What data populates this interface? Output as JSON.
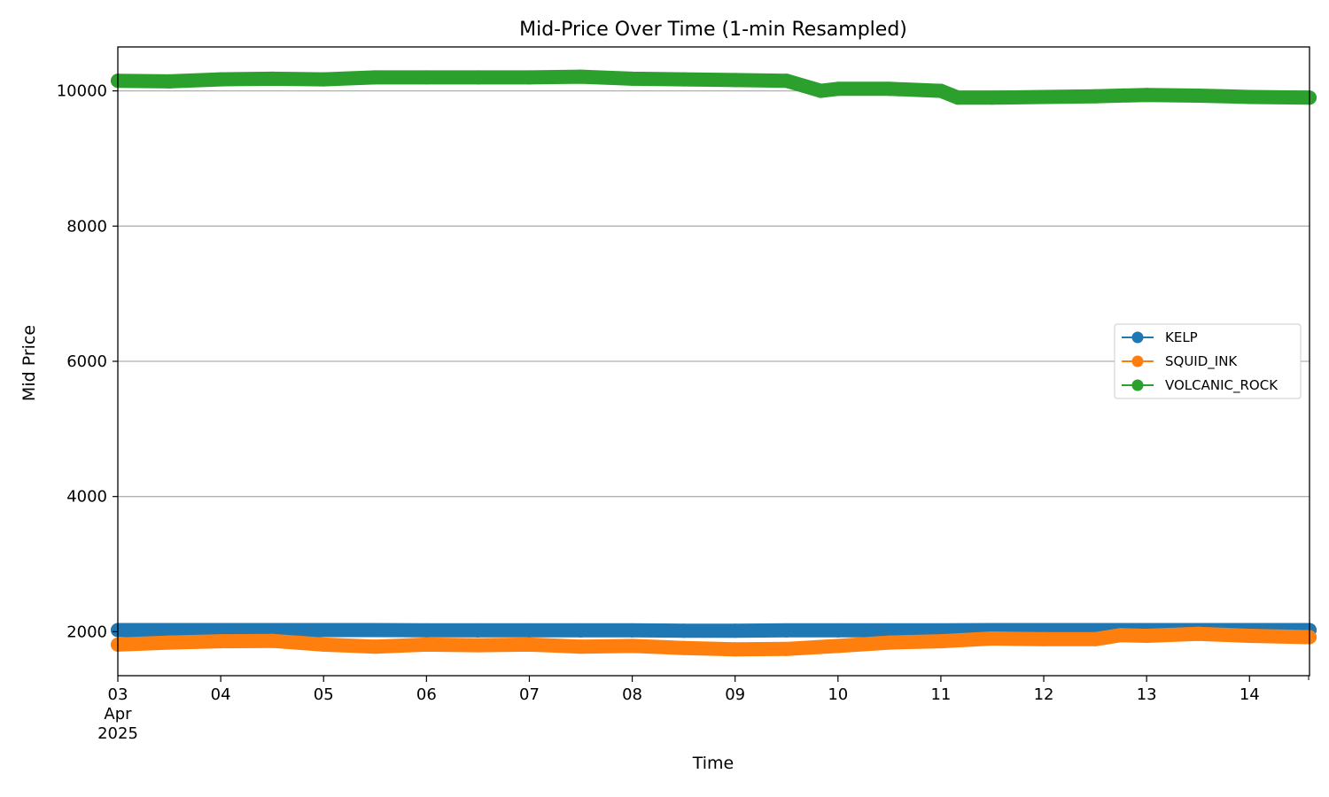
{
  "chart_data": {
    "type": "line",
    "title": "Mid-Price Over Time (1-min Resampled)",
    "xlabel": "Time",
    "ylabel": "Mid Price",
    "xlim": [
      "2025-04-03",
      "2025-04-14 14:00"
    ],
    "ylim": [
      1350,
      10650
    ],
    "grid": "y",
    "legend_position": "center-right",
    "x_ticks": [
      {
        "date": "2025-04-03",
        "label": [
          "03",
          "Apr",
          "2025"
        ]
      },
      {
        "date": "2025-04-04",
        "label": [
          "04"
        ]
      },
      {
        "date": "2025-04-05",
        "label": [
          "05"
        ]
      },
      {
        "date": "2025-04-06",
        "label": [
          "06"
        ]
      },
      {
        "date": "2025-04-07",
        "label": [
          "07"
        ]
      },
      {
        "date": "2025-04-08",
        "label": [
          "08"
        ]
      },
      {
        "date": "2025-04-09",
        "label": [
          "09"
        ]
      },
      {
        "date": "2025-04-10",
        "label": [
          "10"
        ]
      },
      {
        "date": "2025-04-11",
        "label": [
          "11"
        ]
      },
      {
        "date": "2025-04-12",
        "label": [
          "12"
        ]
      },
      {
        "date": "2025-04-13",
        "label": [
          "13"
        ]
      },
      {
        "date": "2025-04-14",
        "label": [
          "14"
        ]
      }
    ],
    "y_ticks": [
      {
        "value": 2000,
        "label": "2000"
      },
      {
        "value": 4000,
        "label": "4000"
      },
      {
        "value": 6000,
        "label": "6000"
      },
      {
        "value": 8000,
        "label": "8000"
      },
      {
        "value": 10000,
        "label": "10000"
      }
    ],
    "series": [
      {
        "name": "KELP",
        "color": "#1f77b4",
        "points": [
          [
            "2025-04-03 00:00",
            2025
          ],
          [
            "2025-04-03 12:00",
            2025
          ],
          [
            "2025-04-04 00:00",
            2025
          ],
          [
            "2025-04-04 12:00",
            2025
          ],
          [
            "2025-04-05 00:00",
            2025
          ],
          [
            "2025-04-05 12:00",
            2025
          ],
          [
            "2025-04-06 00:00",
            2020
          ],
          [
            "2025-04-06 12:00",
            2020
          ],
          [
            "2025-04-07 00:00",
            2020
          ],
          [
            "2025-04-07 12:00",
            2020
          ],
          [
            "2025-04-08 00:00",
            2020
          ],
          [
            "2025-04-08 12:00",
            2015
          ],
          [
            "2025-04-09 00:00",
            2015
          ],
          [
            "2025-04-09 12:00",
            2020
          ],
          [
            "2025-04-10 00:00",
            2020
          ],
          [
            "2025-04-10 12:00",
            2020
          ],
          [
            "2025-04-11 00:00",
            2020
          ],
          [
            "2025-04-11 12:00",
            2025
          ],
          [
            "2025-04-12 00:00",
            2025
          ],
          [
            "2025-04-12 12:00",
            2025
          ],
          [
            "2025-04-13 00:00",
            2025
          ],
          [
            "2025-04-13 12:00",
            2025
          ],
          [
            "2025-04-14 00:00",
            2025
          ],
          [
            "2025-04-14 14:00",
            2025
          ]
        ]
      },
      {
        "name": "SQUID_INK",
        "color": "#ff7f0e",
        "points": [
          [
            "2025-04-03 00:00",
            1810
          ],
          [
            "2025-04-03 12:00",
            1840
          ],
          [
            "2025-04-04 00:00",
            1860
          ],
          [
            "2025-04-04 12:00",
            1865
          ],
          [
            "2025-04-05 00:00",
            1810
          ],
          [
            "2025-04-05 12:00",
            1780
          ],
          [
            "2025-04-06 00:00",
            1810
          ],
          [
            "2025-04-06 12:00",
            1800
          ],
          [
            "2025-04-07 00:00",
            1810
          ],
          [
            "2025-04-07 12:00",
            1780
          ],
          [
            "2025-04-08 00:00",
            1790
          ],
          [
            "2025-04-08 12:00",
            1760
          ],
          [
            "2025-04-09 00:00",
            1740
          ],
          [
            "2025-04-09 12:00",
            1745
          ],
          [
            "2025-04-10 00:00",
            1790
          ],
          [
            "2025-04-10 12:00",
            1840
          ],
          [
            "2025-04-11 00:00",
            1860
          ],
          [
            "2025-04-11 12:00",
            1900
          ],
          [
            "2025-04-12 00:00",
            1890
          ],
          [
            "2025-04-12 12:00",
            1890
          ],
          [
            "2025-04-12 18:00",
            1950
          ],
          [
            "2025-04-13 00:00",
            1940
          ],
          [
            "2025-04-13 12:00",
            1970
          ],
          [
            "2025-04-14 00:00",
            1940
          ],
          [
            "2025-04-14 14:00",
            1920
          ]
        ]
      },
      {
        "name": "VOLCANIC_ROCK",
        "color": "#2ca02c",
        "points": [
          [
            "2025-04-03 00:00",
            10150
          ],
          [
            "2025-04-03 12:00",
            10140
          ],
          [
            "2025-04-04 00:00",
            10170
          ],
          [
            "2025-04-04 12:00",
            10180
          ],
          [
            "2025-04-05 00:00",
            10170
          ],
          [
            "2025-04-05 12:00",
            10200
          ],
          [
            "2025-04-06 00:00",
            10200
          ],
          [
            "2025-04-06 12:00",
            10200
          ],
          [
            "2025-04-07 00:00",
            10200
          ],
          [
            "2025-04-07 12:00",
            10210
          ],
          [
            "2025-04-08 00:00",
            10180
          ],
          [
            "2025-04-08 12:00",
            10170
          ],
          [
            "2025-04-09 00:00",
            10160
          ],
          [
            "2025-04-09 12:00",
            10150
          ],
          [
            "2025-04-09 20:00",
            10000
          ],
          [
            "2025-04-10 00:00",
            10030
          ],
          [
            "2025-04-10 12:00",
            10030
          ],
          [
            "2025-04-11 00:00",
            10000
          ],
          [
            "2025-04-11 04:00",
            9900
          ],
          [
            "2025-04-11 12:00",
            9900
          ],
          [
            "2025-04-12 00:00",
            9910
          ],
          [
            "2025-04-12 12:00",
            9920
          ],
          [
            "2025-04-13 00:00",
            9940
          ],
          [
            "2025-04-13 12:00",
            9930
          ],
          [
            "2025-04-14 00:00",
            9910
          ],
          [
            "2025-04-14 14:00",
            9900
          ]
        ]
      }
    ]
  }
}
